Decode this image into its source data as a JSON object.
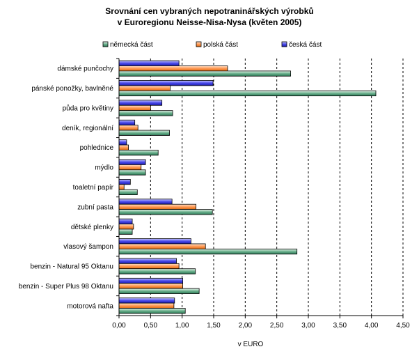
{
  "chart_data": {
    "type": "bar",
    "orientation": "horizontal",
    "title_line1": "Srovnání cen vybraných nepotraninářských výrobků",
    "title_line2": "v Euroregionu Neisse-Nisa-Nysa (květen 2005)",
    "xlabel": "v EURO",
    "ylabel": "",
    "xlim": [
      0,
      4.5
    ],
    "xticks": [
      "0,00",
      "0,50",
      "1,00",
      "1,50",
      "2,00",
      "2,50",
      "3,00",
      "3,50",
      "4,00",
      "4,50"
    ],
    "grid": true,
    "legend_position": "top",
    "categories": [
      "dámské punčochy",
      "pánské ponožky, bavlněné",
      "půda pro květiny",
      "deník, regionální",
      "pohlednice",
      "mýdlo",
      "toaletní papír",
      "zubní pasta",
      "dětské plenky",
      "vlasový šampon",
      "benzin - Natural 95 Oktanu",
      "benzin - Super Plus 98 Oktanu",
      "motorová nafta"
    ],
    "series": [
      {
        "name": "česká část",
        "color": "#4040e0",
        "values": [
          0.95,
          1.49,
          0.68,
          0.25,
          0.12,
          0.42,
          0.18,
          0.84,
          0.21,
          1.14,
          0.91,
          1.01,
          0.88
        ]
      },
      {
        "name": "polská část",
        "color": "#ff8c40",
        "values": [
          1.72,
          0.81,
          0.5,
          0.3,
          0.15,
          0.35,
          0.08,
          1.22,
          0.23,
          1.37,
          0.95,
          1.01,
          0.87
        ]
      },
      {
        "name": "německá část",
        "color": "#3a8a6a",
        "values": [
          2.72,
          4.07,
          0.85,
          0.8,
          0.62,
          0.42,
          0.29,
          1.48,
          0.21,
          2.82,
          1.21,
          1.27,
          1.05
        ]
      }
    ]
  }
}
